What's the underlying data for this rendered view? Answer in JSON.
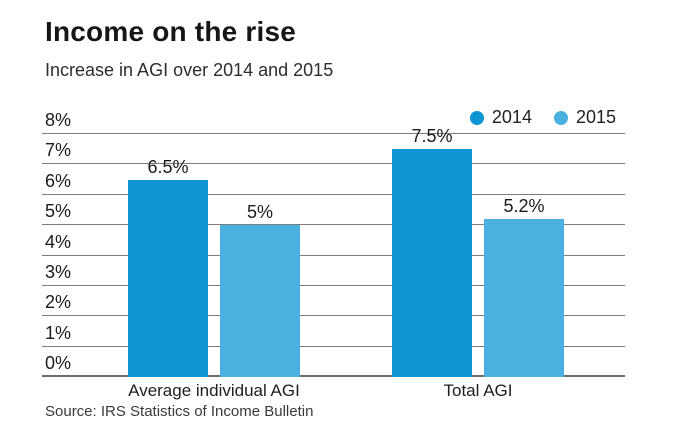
{
  "header": {
    "title": "Income on the rise",
    "subtitle": "Increase in AGI over 2014 and 2015"
  },
  "legend": [
    {
      "label": "2014",
      "color": "#0e95d3"
    },
    {
      "label": "2015",
      "color": "#49b0df"
    }
  ],
  "source": "Source: IRS Statistics of Income Bulletin",
  "colors": {
    "series_2014": "#0e95d3",
    "series_2015": "#49b0df",
    "gridline": "#7d7d7d",
    "text": "#1b1b1b",
    "background": "#ffffff"
  },
  "chart_data": {
    "type": "bar",
    "title": "Income on the rise",
    "subtitle": "Increase in AGI over 2014 and 2015",
    "categories": [
      "Average individual AGI",
      "Total AGI"
    ],
    "series": [
      {
        "name": "2014",
        "color": "#0e95d3",
        "values": [
          6.5,
          7.5
        ],
        "labels": [
          "6.5%",
          "7.5%"
        ]
      },
      {
        "name": "2015",
        "color": "#49b0df",
        "values": [
          5,
          5.2
        ],
        "labels": [
          "5%",
          "5.2%"
        ]
      }
    ],
    "xlabel": "",
    "ylabel": "",
    "ylim": [
      0,
      8
    ],
    "ytick_step": 1,
    "ytick_labels": [
      "0%",
      "1%",
      "2%",
      "3%",
      "4%",
      "5%",
      "6%",
      "7%",
      "8%"
    ],
    "grid": true,
    "legend_position": "top-right",
    "source": "Source: IRS Statistics of Income Bulletin"
  }
}
